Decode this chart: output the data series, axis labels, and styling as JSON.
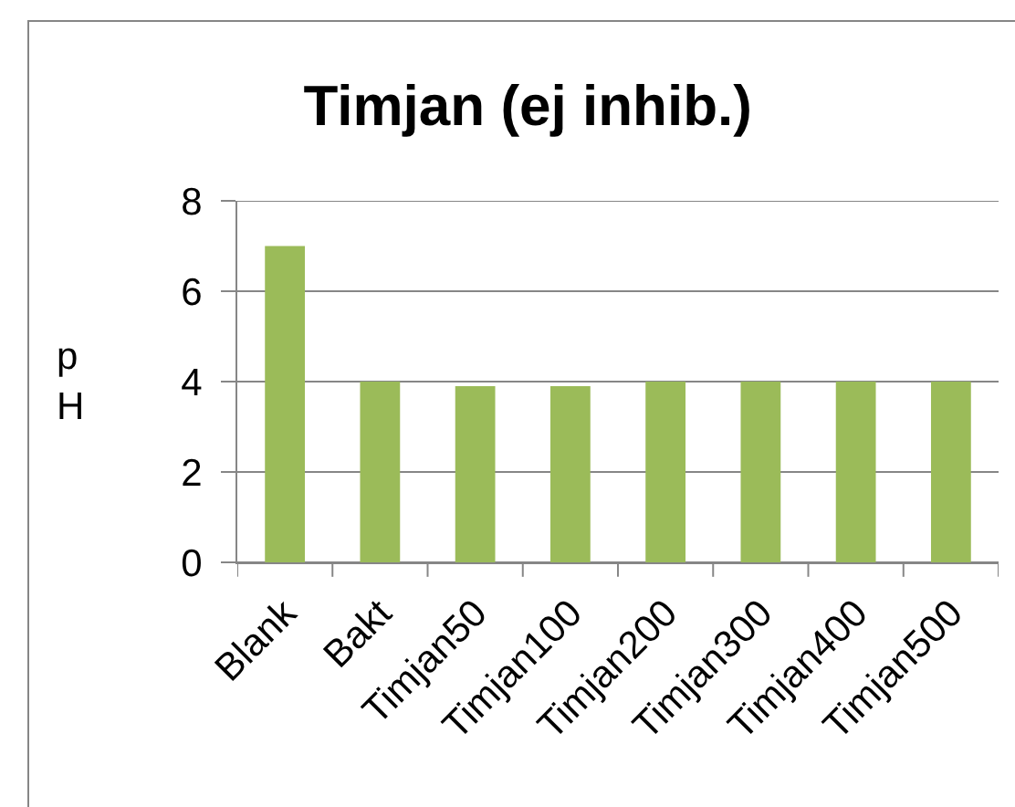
{
  "chart_data": {
    "type": "bar",
    "title": "Timjan (ej inhib.)",
    "ylabel": "pH",
    "categories": [
      "Blank",
      "Bakt",
      "Timjan50",
      "Timjan100",
      "Timjan200",
      "Timjan300",
      "Timjan400",
      "Timjan500"
    ],
    "values": [
      7,
      4,
      3.9,
      3.9,
      4,
      4,
      4,
      4
    ],
    "color": "#9bbb59",
    "ylim": [
      0,
      8
    ],
    "yticks": [
      0,
      2,
      4,
      6,
      8
    ],
    "grid": "y"
  }
}
